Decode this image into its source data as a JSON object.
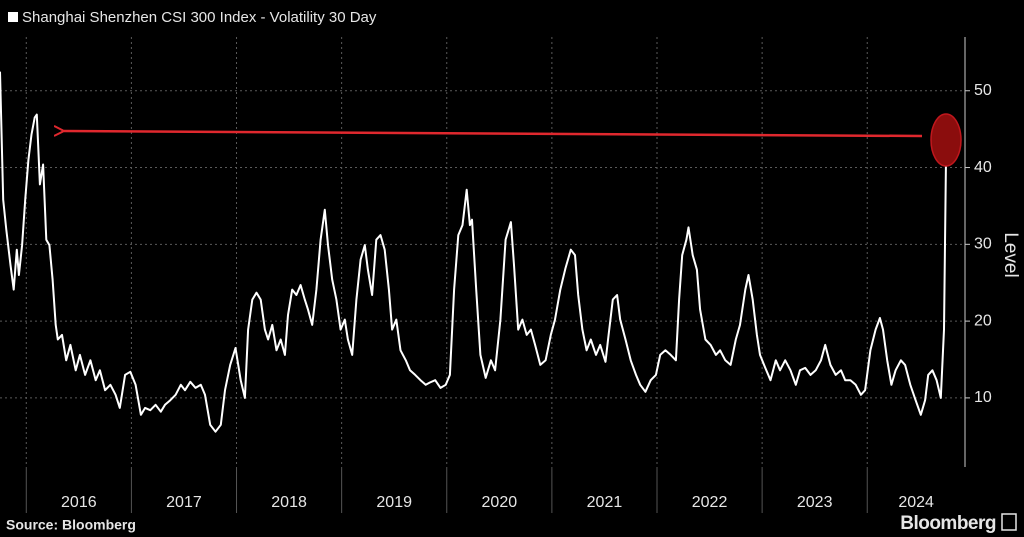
{
  "chart_data": {
    "type": "line",
    "series": [
      {
        "name": "Shanghai Shenzhen CSI 300 Index - Volatility 30 Day",
        "color": "#ffffff",
        "values": [
          52.5,
          35.8,
          31.9,
          27.3,
          24.1,
          29.3,
          26.0,
          29.9,
          35.8,
          41.0,
          44.3,
          46.5,
          46.9,
          37.8,
          40.4,
          30.6,
          29.9,
          25.4,
          19.5,
          17.6,
          18.2,
          14.9,
          16.9,
          13.6,
          15.6,
          13.0,
          14.9,
          12.3,
          13.6,
          11.0,
          11.7,
          10.4,
          8.7,
          13.0,
          13.4,
          11.7,
          7.8,
          8.7,
          8.4,
          9.1,
          8.2,
          9.1,
          9.7,
          10.4,
          11.7,
          11.0,
          12.1,
          11.3,
          11.7,
          10.4,
          6.5,
          5.6,
          6.5,
          11.0,
          14.3,
          16.5,
          12.3,
          10.0,
          18.9,
          22.8,
          23.7,
          22.8,
          18.9,
          17.6,
          19.5,
          16.2,
          17.6,
          15.6,
          20.8,
          24.1,
          23.4,
          24.7,
          22.8,
          21.5,
          19.5,
          24.1,
          30.6,
          34.5,
          29.9,
          25.4,
          22.8,
          18.9,
          20.2,
          17.6,
          15.6,
          22.8,
          28.0,
          29.9,
          26.7,
          23.4,
          30.6,
          31.2,
          29.3,
          24.1,
          18.9,
          20.2,
          16.2,
          14.9,
          13.6,
          13.0,
          12.3,
          11.7,
          12.0,
          12.3,
          11.3,
          11.7,
          13.0,
          24.1,
          31.2,
          32.5,
          37.1,
          32.5,
          33.2,
          24.1,
          15.6,
          12.6,
          14.9,
          13.6,
          20.2,
          30.6,
          32.9,
          27.3,
          18.9,
          20.2,
          18.2,
          18.9,
          16.9,
          14.3,
          14.9,
          18.2,
          20.2,
          24.1,
          26.9,
          29.3,
          28.6,
          23.4,
          18.9,
          16.2,
          17.6,
          15.6,
          16.9,
          14.7,
          18.2,
          22.8,
          23.4,
          20.2,
          17.6,
          14.9,
          13.0,
          11.7,
          10.8,
          12.3,
          13.0,
          15.6,
          16.2,
          15.6,
          14.9,
          22.8,
          28.6,
          30.6,
          32.2,
          28.6,
          26.7,
          21.5,
          17.6,
          16.9,
          15.6,
          16.2,
          14.9,
          14.3,
          17.6,
          19.5,
          24.1,
          26.0,
          22.8,
          18.2,
          15.6,
          13.9,
          12.3,
          14.9,
          13.6,
          14.9,
          13.6,
          11.7,
          13.6,
          13.9,
          13.0,
          13.6,
          14.9,
          16.9,
          14.3,
          13.0,
          13.6,
          12.3,
          12.3,
          11.7,
          10.4,
          11.0,
          16.2,
          18.9,
          20.4,
          18.9,
          14.9,
          11.7,
          13.6,
          14.9,
          14.3,
          11.7,
          9.7,
          7.8,
          9.7,
          13.0,
          13.6,
          12.3,
          10.0,
          18.9,
          42.3,
          44.3
        ]
      }
    ],
    "x": [
      2015.75,
      2015.78,
      2015.81,
      2015.85,
      2015.88,
      2015.91,
      2015.93,
      2015.96,
      2015.99,
      2016.02,
      2016.05,
      2016.08,
      2016.1,
      2016.13,
      2016.16,
      2016.19,
      2016.22,
      2016.25,
      2016.28,
      2016.3,
      2016.34,
      2016.38,
      2016.42,
      2016.47,
      2016.51,
      2016.56,
      2016.61,
      2016.66,
      2016.7,
      2016.75,
      2016.8,
      2016.85,
      2016.89,
      2016.94,
      2016.99,
      2017.04,
      2017.09,
      2017.13,
      2017.18,
      2017.23,
      2017.28,
      2017.32,
      2017.37,
      2017.42,
      2017.47,
      2017.51,
      2017.56,
      2017.61,
      2017.66,
      2017.7,
      2017.75,
      2017.8,
      2017.85,
      2017.89,
      2017.94,
      2017.99,
      2018.04,
      2018.08,
      2018.11,
      2018.15,
      2018.19,
      2018.23,
      2018.27,
      2018.3,
      2018.34,
      2018.38,
      2018.42,
      2018.46,
      2018.49,
      2018.53,
      2018.57,
      2018.61,
      2018.65,
      2018.68,
      2018.72,
      2018.76,
      2018.8,
      2018.84,
      2018.87,
      2018.91,
      2018.95,
      2018.99,
      2019.03,
      2019.06,
      2019.1,
      2019.14,
      2019.18,
      2019.22,
      2019.25,
      2019.29,
      2019.33,
      2019.37,
      2019.41,
      2019.45,
      2019.48,
      2019.52,
      2019.56,
      2019.61,
      2019.65,
      2019.7,
      2019.75,
      2019.8,
      2019.84,
      2019.89,
      2019.94,
      2019.99,
      2020.03,
      2020.07,
      2020.11,
      2020.15,
      2020.19,
      2020.22,
      2020.24,
      2020.28,
      2020.32,
      2020.37,
      2020.42,
      2020.46,
      2020.51,
      2020.56,
      2020.61,
      2020.64,
      2020.68,
      2020.72,
      2020.76,
      2020.8,
      2020.84,
      2020.89,
      2020.94,
      2020.99,
      2021.03,
      2021.08,
      2021.13,
      2021.18,
      2021.22,
      2021.25,
      2021.29,
      2021.33,
      2021.37,
      2021.42,
      2021.46,
      2021.51,
      2021.54,
      2021.58,
      2021.62,
      2021.65,
      2021.7,
      2021.75,
      2021.8,
      2021.84,
      2021.89,
      2021.94,
      2021.99,
      2022.03,
      2022.08,
      2022.13,
      2022.18,
      2022.21,
      2022.24,
      2022.28,
      2022.3,
      2022.34,
      2022.38,
      2022.41,
      2022.46,
      2022.51,
      2022.56,
      2022.6,
      2022.65,
      2022.7,
      2022.75,
      2022.79,
      2022.84,
      2022.87,
      2022.91,
      2022.95,
      2022.98,
      2023.03,
      2023.08,
      2023.13,
      2023.17,
      2023.22,
      2023.27,
      2023.32,
      2023.36,
      2023.41,
      2023.46,
      2023.51,
      2023.56,
      2023.6,
      2023.65,
      2023.7,
      2023.75,
      2023.79,
      2023.84,
      2023.89,
      2023.94,
      2023.98,
      2024.03,
      2024.08,
      2024.12,
      2024.15,
      2024.19,
      2024.23,
      2024.27,
      2024.32,
      2024.36,
      2024.41,
      2024.46,
      2024.51,
      2024.55,
      2024.58,
      2024.62,
      2024.66,
      2024.7,
      2024.73,
      2024.75,
      2024.76
    ],
    "xlim": [
      2015.75,
      2024.93
    ],
    "xticks": [
      2016,
      2017,
      2018,
      2019,
      2020,
      2021,
      2022,
      2023,
      2024
    ],
    "ylim": [
      1,
      57
    ],
    "yticks": [
      10,
      20,
      30,
      40,
      50
    ],
    "ylabel": "Level",
    "y_axis_side": "right",
    "grid": true,
    "source": "Source: Bloomberg",
    "brand": "Bloomberg"
  }
}
